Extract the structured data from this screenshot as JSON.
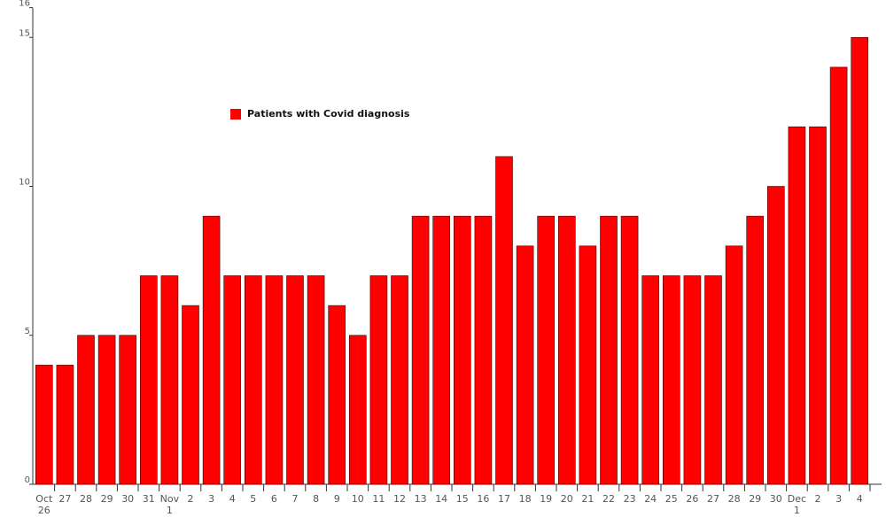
{
  "chart_data": {
    "type": "bar",
    "categories": [
      "Oct\n26",
      "27",
      "28",
      "29",
      "30",
      "31",
      "Nov\n1",
      "2",
      "3",
      "4",
      "5",
      "6",
      "7",
      "8",
      "9",
      "10",
      "11",
      "12",
      "13",
      "14",
      "15",
      "16",
      "17",
      "18",
      "19",
      "20",
      "21",
      "22",
      "23",
      "24",
      "25",
      "26",
      "27",
      "28",
      "29",
      "30",
      "Dec\n1",
      "2",
      "3",
      "4"
    ],
    "series": [
      {
        "name": "Patients with Covid diagnosis",
        "color": "#ff0000",
        "values": [
          4,
          4,
          5,
          5,
          5,
          7,
          7,
          6,
          9,
          7,
          7,
          7,
          7,
          7,
          6,
          5,
          7,
          7,
          9,
          9,
          9,
          9,
          11,
          8,
          9,
          9,
          8,
          9,
          9,
          7,
          7,
          7,
          7,
          8,
          9,
          10,
          12,
          12,
          14,
          15
        ]
      }
    ],
    "ylim": [
      0,
      16
    ],
    "yticks": [
      0,
      5,
      10,
      15,
      16
    ],
    "grid": false,
    "legend": "upper left"
  }
}
